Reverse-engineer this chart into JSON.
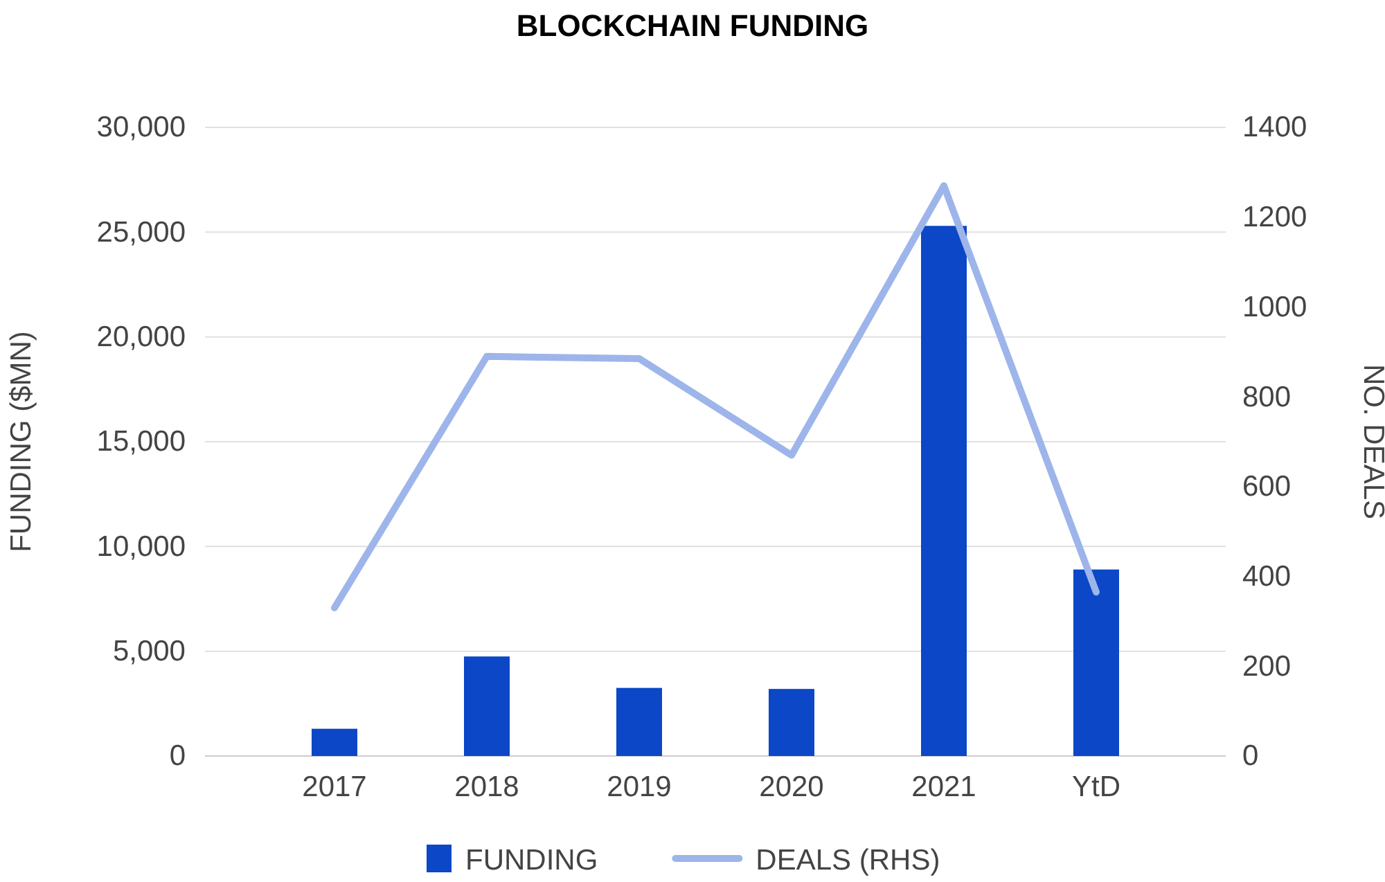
{
  "chart_data": {
    "type": "bar",
    "title": "BLOCKCHAIN FUNDING",
    "categories": [
      "2017",
      "2018",
      "2019",
      "2020",
      "2021",
      "YtD"
    ],
    "series": [
      {
        "name": "FUNDING",
        "color": "#0b47c6",
        "values": [
          1300,
          4750,
          3250,
          3200,
          25300,
          8900
        ]
      },
      {
        "name": "DEALS (RHS)",
        "type": "line",
        "axis": "y2",
        "color": "#9db5ea",
        "values": [
          330,
          890,
          885,
          670,
          1270,
          365
        ]
      }
    ],
    "ylabel": "FUNDING ($MN)",
    "y2label": "NO. DEALS",
    "ylim": [
      0,
      30000
    ],
    "yticks": [
      {
        "value": 0,
        "label": "0"
      },
      {
        "value": 5000,
        "label": "5,000"
      },
      {
        "value": 10000,
        "label": "10,000"
      },
      {
        "value": 15000,
        "label": "15,000"
      },
      {
        "value": 20000,
        "label": "20,000"
      },
      {
        "value": 25000,
        "label": "25,000"
      },
      {
        "value": 30000,
        "label": "30,000"
      }
    ],
    "y2lim": [
      0,
      1400
    ],
    "y2ticks": [
      0,
      200,
      400,
      600,
      800,
      1000,
      1200,
      1400
    ],
    "grid": "y",
    "legend": "bottom",
    "marker": "none",
    "line_style": "solid"
  }
}
